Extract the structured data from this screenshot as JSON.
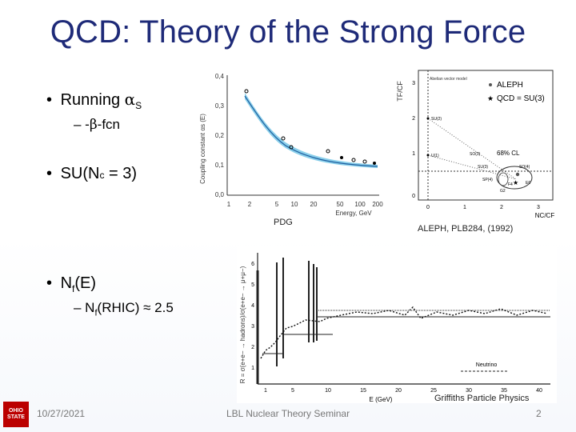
{
  "title": "QCD: Theory of the Strong Force",
  "bullets": {
    "running": {
      "text": "Running ",
      "symbol": "α",
      "subscript": "S"
    },
    "beta_fcn": {
      "dash": "– -",
      "symbol": "β",
      "text": "-fcn"
    },
    "sun": {
      "text": "SU(N",
      "subscript": "c",
      "after": " = 3)"
    },
    "nf": {
      "text": "N",
      "subscript": "f",
      "after": "(E)"
    },
    "nf_rhic": {
      "text": "– N",
      "subscript": "f",
      "after": "(RHIC) ≈ 2.5"
    }
  },
  "captions": {
    "pdg": "PDG",
    "aleph": "ALEPH, PLB284, (1992)",
    "griffiths": "Griffiths Particle Physics"
  },
  "plot_alpha": {
    "y_ticks": [
      "0,4",
      "0,3",
      "0,2",
      "0,1",
      "0,0"
    ],
    "x_ticks": [
      "1",
      "2",
      "5",
      "10",
      "20",
      "50",
      "100",
      "200"
    ],
    "xlabel": "Energy, GeV",
    "ylabel": "Coupling constant αs (E)"
  },
  "plot_aleph": {
    "legend": [
      "ALEPH",
      "QCD = SU(3)"
    ],
    "legend_small": "Abelian vector model",
    "cl_label": "68% CL",
    "y_ticks": [
      "3",
      "2",
      "1",
      "0"
    ],
    "x_ticks": [
      "0",
      "1",
      "2",
      "3"
    ],
    "ylabel": "TF/CF",
    "xlabel": "NC/CF",
    "groups": [
      "SU(2)",
      "SU(3)",
      "U(1)",
      "SO(3)",
      "SP(4)",
      "SO(4)",
      "F4",
      "E6",
      "G2"
    ]
  },
  "plot_r": {
    "ylabel": "R = σ(e+e− → hadrons)/σ(e+e− → μ+μ−)",
    "xlabel": "E (GeV)",
    "x_ticks": [
      "1",
      "5",
      "10",
      "15",
      "20",
      "25",
      "30",
      "35",
      "40"
    ],
    "y_ticks": [
      "6",
      "5",
      "4",
      "3",
      "2",
      "1"
    ],
    "annotation": "Neutrino"
  },
  "footer": {
    "date": "10/27/2021",
    "center": "LBL Nuclear Theory Seminar",
    "page": "2",
    "logo": "OHIO STATE"
  },
  "colors": {
    "title": "#1e2a78",
    "logo_bg": "#bb0000",
    "band": "#2aa7d8"
  }
}
